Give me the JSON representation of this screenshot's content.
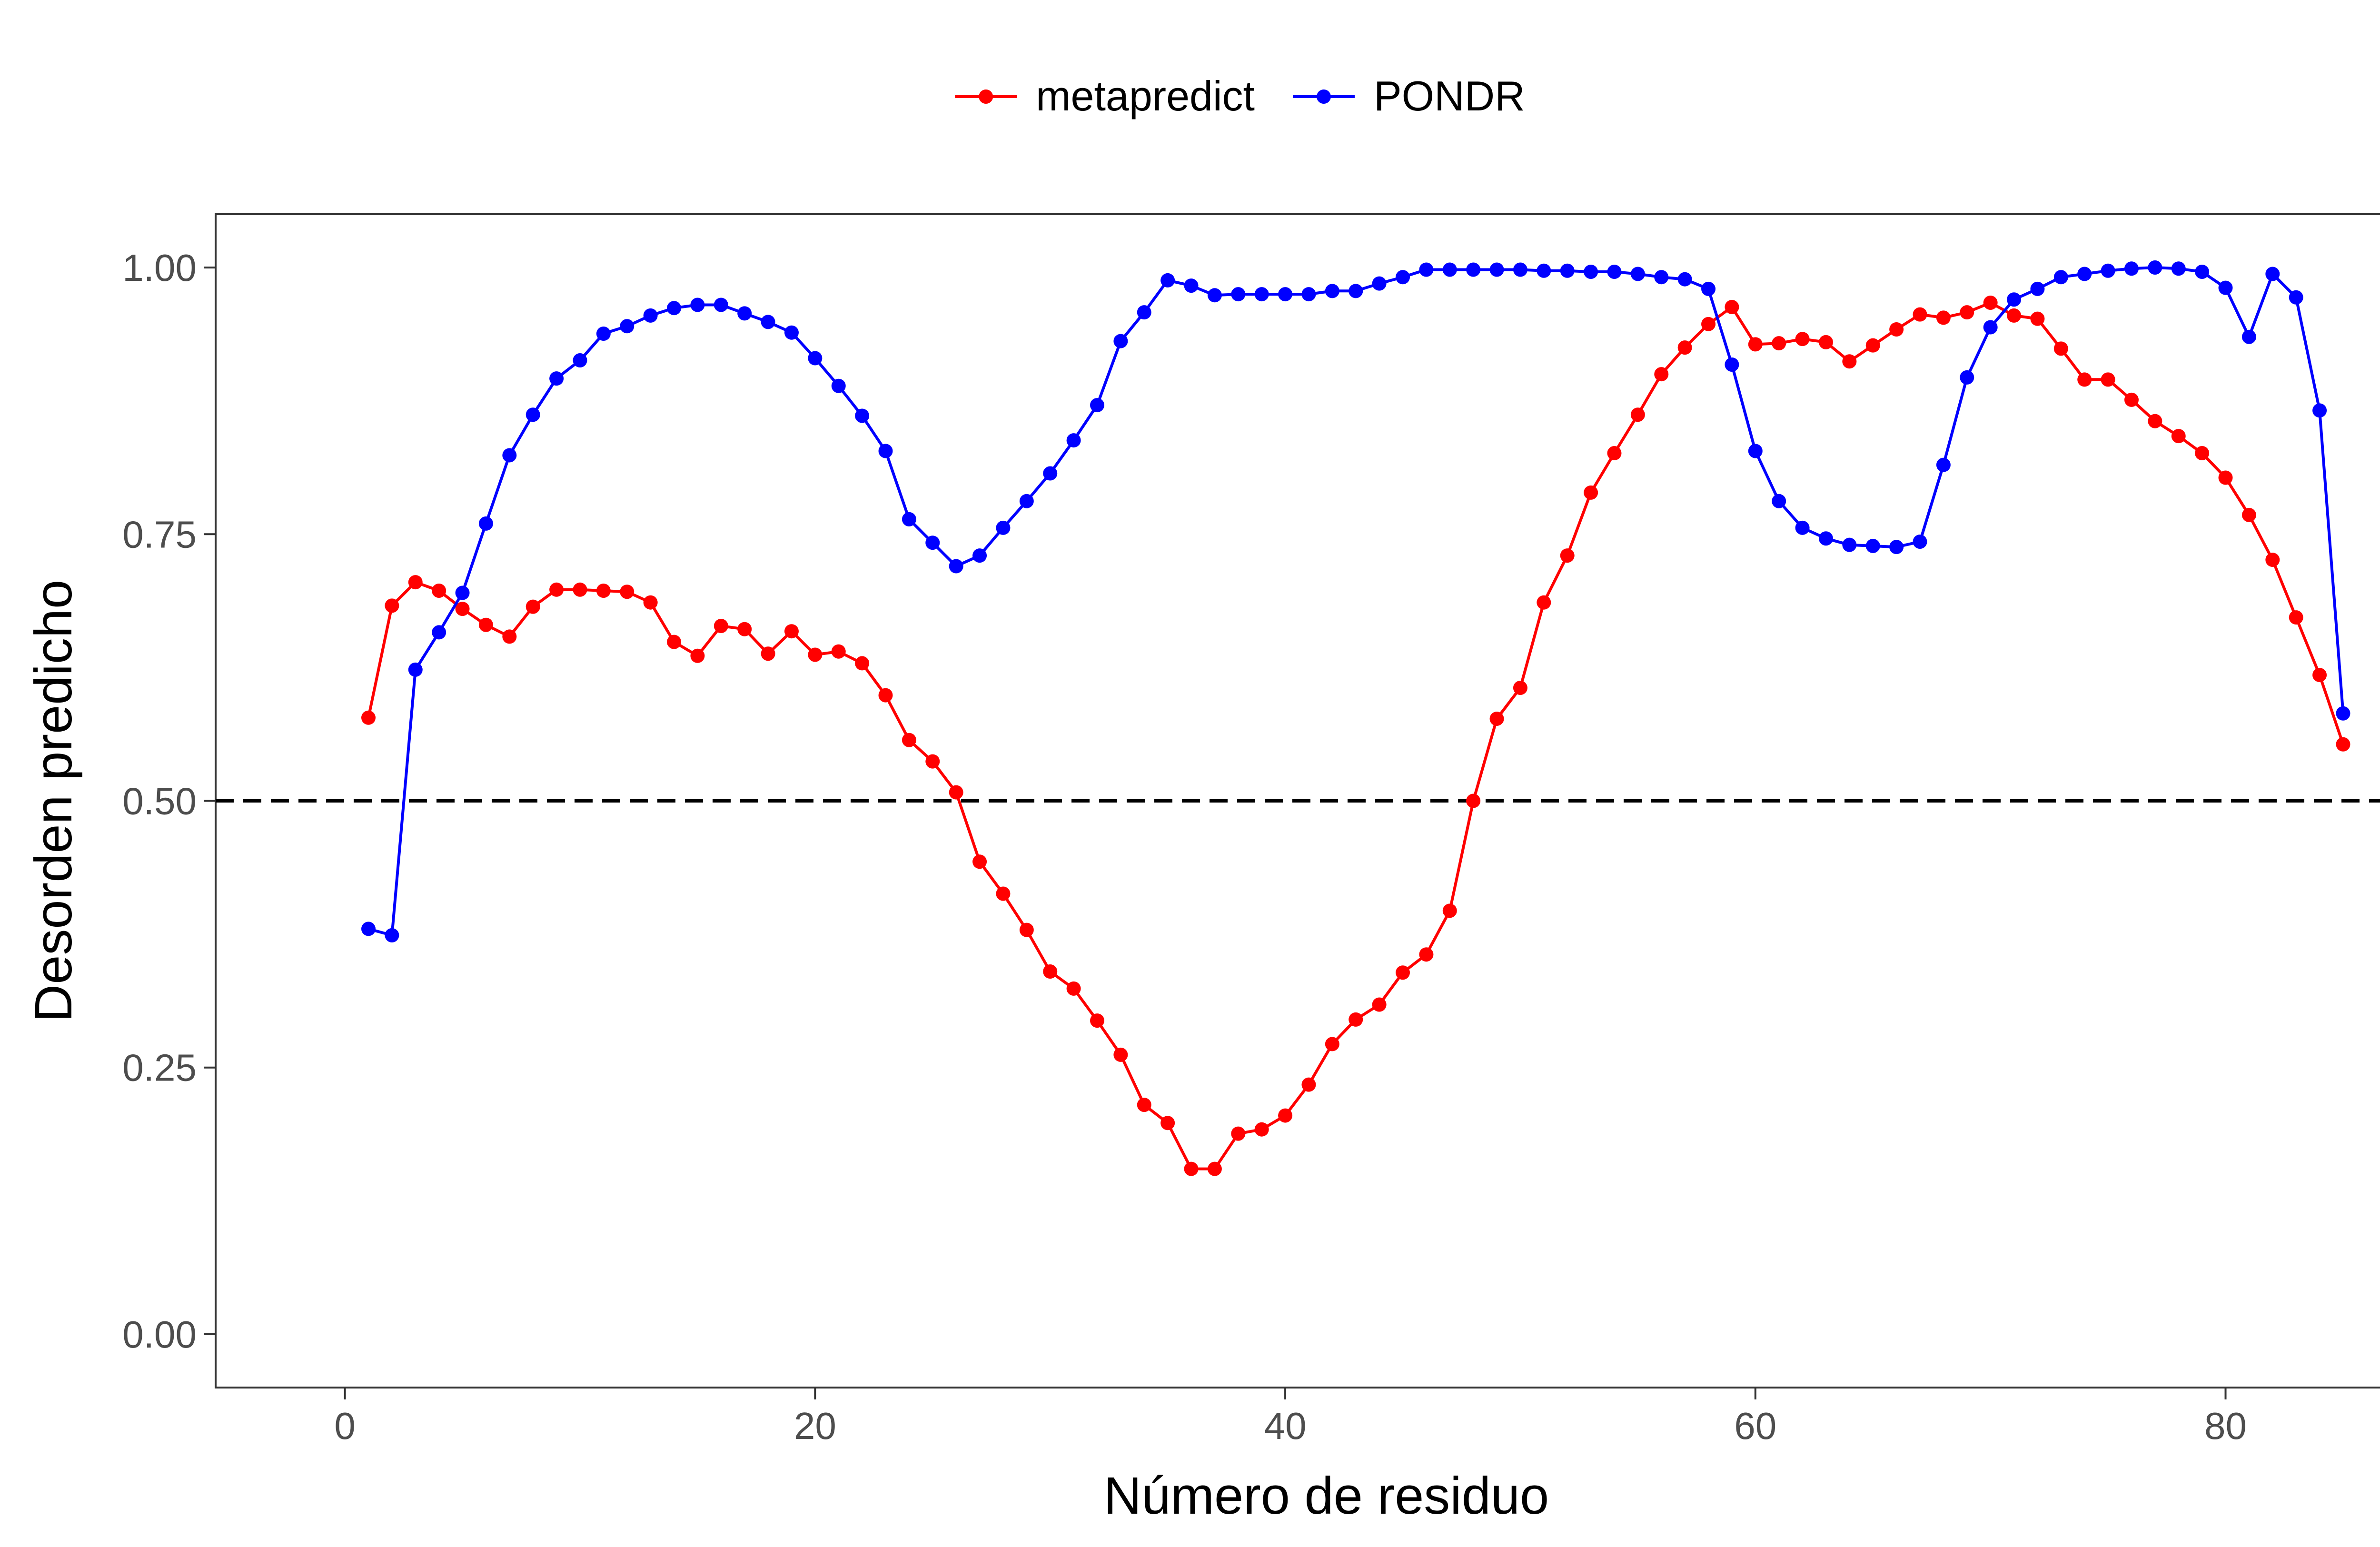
{
  "chart_data": {
    "type": "line",
    "xlabel": "Número de residuo",
    "ylabel": "Desorden predicho",
    "xlim": [
      -5.5,
      89
    ],
    "ylim": [
      -0.05,
      1.05
    ],
    "x_ticks": [
      0,
      20,
      40,
      60,
      80
    ],
    "x_tick_labels": [
      "0",
      "20",
      "40",
      "60",
      "80"
    ],
    "y_ticks": [
      0,
      0.25,
      0.5,
      0.75,
      1
    ],
    "y_tick_labels": [
      "0.00",
      "0.25",
      "0.50",
      "0.75",
      "1.00"
    ],
    "reference_line": {
      "y": 0.5,
      "style": "dashed",
      "color": "#000000"
    },
    "grid": false,
    "legend_position": "top",
    "series": [
      {
        "name": "metapredict",
        "color": "#ff0000",
        "x": [
          1,
          2,
          3,
          4,
          5,
          6,
          7,
          8,
          9,
          10,
          11,
          12,
          13,
          14,
          15,
          16,
          17,
          18,
          19,
          20,
          21,
          22,
          23,
          24,
          25,
          26,
          27,
          28,
          29,
          30,
          31,
          32,
          33,
          34,
          35,
          36,
          37,
          38,
          39,
          40,
          41,
          42,
          43,
          44,
          45,
          46,
          47,
          48,
          49,
          50,
          51,
          52,
          53,
          54,
          55,
          56,
          57,
          58,
          59,
          60,
          61,
          62,
          63,
          64,
          65,
          66,
          67,
          68,
          69,
          70,
          71,
          72,
          73,
          74,
          75,
          76,
          77,
          78,
          79,
          80,
          81,
          82,
          83,
          84,
          85
        ],
        "values": [
          0.578,
          0.683,
          0.705,
          0.697,
          0.68,
          0.665,
          0.654,
          0.682,
          0.698,
          0.698,
          0.697,
          0.696,
          0.686,
          0.649,
          0.636,
          0.664,
          0.661,
          0.638,
          0.659,
          0.637,
          0.64,
          0.629,
          0.599,
          0.557,
          0.537,
          0.508,
          0.443,
          0.413,
          0.379,
          0.34,
          0.324,
          0.294,
          0.262,
          0.215,
          0.198,
          0.155,
          0.155,
          0.188,
          0.192,
          0.205,
          0.234,
          0.272,
          0.295,
          0.309,
          0.339,
          0.356,
          0.397,
          0.5,
          0.577,
          0.606,
          0.686,
          0.73,
          0.789,
          0.826,
          0.862,
          0.9,
          0.925,
          0.947,
          0.963,
          0.928,
          0.929,
          0.933,
          0.93,
          0.912,
          0.927,
          0.942,
          0.956,
          0.953,
          0.958,
          0.967,
          0.955,
          0.952,
          0.924,
          0.895,
          0.895,
          0.876,
          0.856,
          0.842,
          0.826,
          0.803,
          0.768,
          0.726,
          0.672,
          0.618,
          0.553
        ]
      },
      {
        "name": "PONDR",
        "color": "#0000ff",
        "x": [
          1,
          2,
          3,
          4,
          5,
          6,
          7,
          8,
          9,
          10,
          11,
          12,
          13,
          14,
          15,
          16,
          17,
          18,
          19,
          20,
          21,
          22,
          23,
          24,
          25,
          26,
          27,
          28,
          29,
          30,
          31,
          32,
          33,
          34,
          35,
          36,
          37,
          38,
          39,
          40,
          41,
          42,
          43,
          44,
          45,
          46,
          47,
          48,
          49,
          50,
          51,
          52,
          53,
          54,
          55,
          56,
          57,
          58,
          59,
          60,
          61,
          62,
          63,
          64,
          65,
          66,
          67,
          68,
          69,
          70,
          71,
          72,
          73,
          74,
          75,
          76,
          77,
          78,
          79,
          80,
          81,
          82,
          83,
          84,
          85
        ],
        "values": [
          0.38,
          0.374,
          0.623,
          0.658,
          0.695,
          0.76,
          0.824,
          0.862,
          0.896,
          0.913,
          0.938,
          0.945,
          0.955,
          0.962,
          0.965,
          0.965,
          0.957,
          0.949,
          0.939,
          0.915,
          0.889,
          0.861,
          0.828,
          0.764,
          0.742,
          0.72,
          0.73,
          0.756,
          0.781,
          0.807,
          0.838,
          0.871,
          0.931,
          0.958,
          0.988,
          0.983,
          0.974,
          0.975,
          0.975,
          0.975,
          0.975,
          0.978,
          0.978,
          0.985,
          0.991,
          0.998,
          0.998,
          0.998,
          0.998,
          0.998,
          0.997,
          0.997,
          0.996,
          0.996,
          0.994,
          0.991,
          0.989,
          0.98,
          0.909,
          0.828,
          0.781,
          0.756,
          0.746,
          0.74,
          0.739,
          0.738,
          0.743,
          0.815,
          0.897,
          0.944,
          0.97,
          0.98,
          0.991,
          0.994,
          0.997,
          0.999,
          1.0,
          0.999,
          0.996,
          0.981,
          0.935,
          0.994,
          0.972,
          0.866,
          0.582
        ]
      }
    ]
  }
}
